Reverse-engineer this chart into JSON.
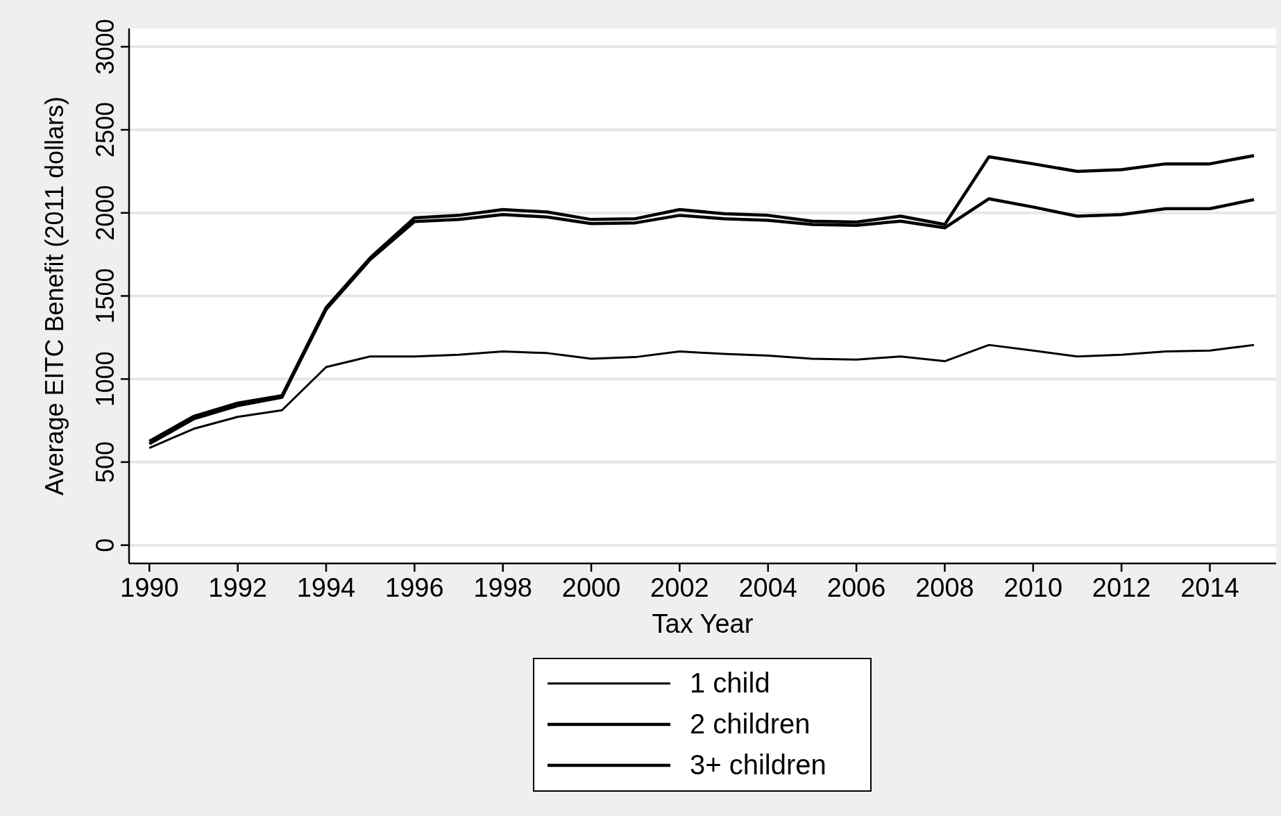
{
  "chart_data": {
    "type": "line",
    "xlabel": "Tax Year",
    "ylabel": "Average EITC Benefit (2011 dollars)",
    "x": [
      1990,
      1991,
      1992,
      1993,
      1994,
      1995,
      1996,
      1997,
      1998,
      1999,
      2000,
      2001,
      2002,
      2003,
      2004,
      2005,
      2006,
      2007,
      2008,
      2009,
      2010,
      2011,
      2012,
      2013,
      2014,
      2015
    ],
    "series": [
      {
        "name": "1 child",
        "color": "#000000",
        "values": [
          585,
          700,
          772,
          812,
          1072,
          1136,
          1136,
          1146,
          1166,
          1156,
          1122,
          1132,
          1166,
          1151,
          1141,
          1122,
          1117,
          1136,
          1107,
          1205,
          1171,
          1136,
          1146,
          1166,
          1171,
          1205
        ]
      },
      {
        "name": "2 children",
        "color": "#000000",
        "values": [
          610,
          760,
          840,
          890,
          1420,
          1720,
          1948,
          1960,
          1990,
          1975,
          1935,
          1940,
          1985,
          1965,
          1955,
          1930,
          1925,
          1950,
          1910,
          2085,
          2035,
          1980,
          1990,
          2025,
          2025,
          2080
        ]
      },
      {
        "name": "3+ children",
        "color": "#000000",
        "values": [
          625,
          775,
          855,
          900,
          1430,
          1730,
          1970,
          1985,
          2020,
          2005,
          1960,
          1965,
          2020,
          1995,
          1985,
          1950,
          1945,
          1980,
          1930,
          2337,
          2295,
          2250,
          2260,
          2295,
          2295,
          2345
        ]
      }
    ],
    "xlim": [
      1989.54,
      2015.5
    ],
    "ylim": [
      -110,
      3110
    ],
    "xticks": [
      1990,
      1992,
      1994,
      1996,
      1998,
      2000,
      2002,
      2004,
      2006,
      2008,
      2010,
      2012,
      2014
    ],
    "yticks": [
      0,
      500,
      1000,
      1500,
      2000,
      2500,
      3000
    ],
    "grid": "y",
    "legend": "bottom",
    "marker": "none",
    "line_style": "solid"
  }
}
